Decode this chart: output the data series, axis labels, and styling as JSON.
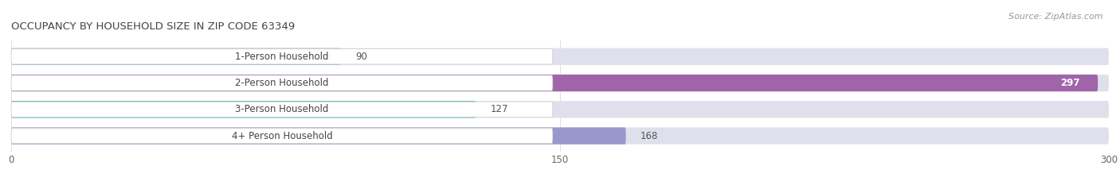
{
  "title": "OCCUPANCY BY HOUSEHOLD SIZE IN ZIP CODE 63349",
  "source": "Source: ZipAtlas.com",
  "categories": [
    "1-Person Household",
    "2-Person Household",
    "3-Person Household",
    "4+ Person Household"
  ],
  "values": [
    90,
    297,
    127,
    168
  ],
  "bar_colors": [
    "#aab8d8",
    "#a065a8",
    "#45b8b0",
    "#9898cc"
  ],
  "background_color": "#ffffff",
  "bar_bg_color": "#e0e0ec",
  "xlim": [
    0,
    300
  ],
  "xticks": [
    0,
    150,
    300
  ],
  "label_fontsize": 8.5,
  "title_fontsize": 9.5,
  "value_fontsize": 8.5,
  "source_fontsize": 8
}
